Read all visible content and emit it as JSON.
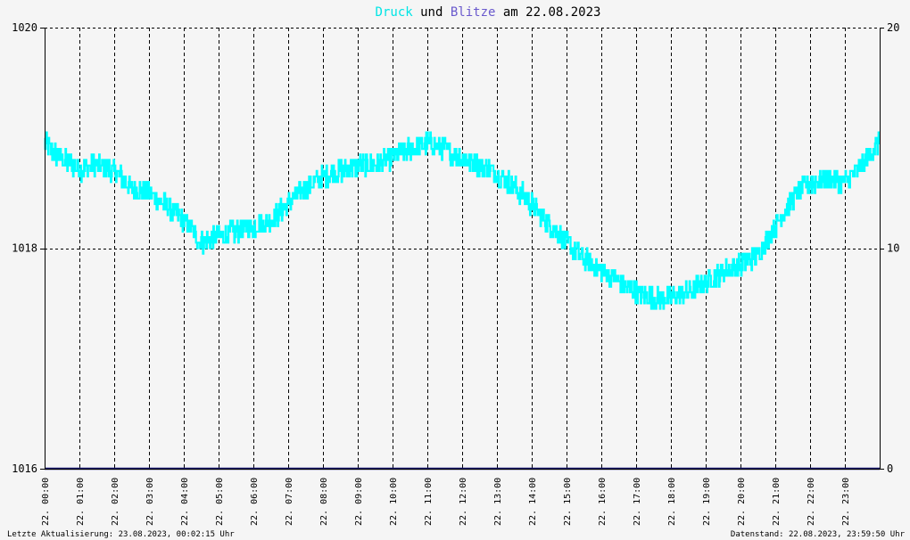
{
  "title": {
    "part1": "Druck",
    "part2": " und ",
    "part3": "Blitze",
    "part4": " am 22.08.2023"
  },
  "footer": {
    "left": "Letzte Aktualisierung: 23.08.2023, 00:02:15 Uhr",
    "right": "Datenstand: 22.08.2023, 23:59:50 Uhr"
  },
  "colors": {
    "background": "#f5f5f5",
    "druck": "#00ffff",
    "blitze": "#191970",
    "grid": "#000000",
    "title_druck": "#00e5e5",
    "title_blitze": "#6a5acd"
  },
  "chart_data": {
    "type": "line",
    "title": "Druck und Blitze am 22.08.2023",
    "x_unit": "hour",
    "xlim": [
      0,
      24
    ],
    "ylim_left": [
      1016,
      1020
    ],
    "ylim_right": [
      0,
      20
    ],
    "y_ticks_left": [
      "1016",
      "1018",
      "1020"
    ],
    "y_ticks_right": [
      "0",
      "10",
      "20"
    ],
    "y_ticks_left_values": [
      1016,
      1018,
      1020
    ],
    "y_ticks_right_values": [
      0,
      10,
      20
    ],
    "x_ticks": [
      {
        "hour": 0,
        "label": "22. 00:00"
      },
      {
        "hour": 1,
        "label": "22. 01:00"
      },
      {
        "hour": 2,
        "label": "22. 02:00"
      },
      {
        "hour": 3,
        "label": "22. 03:00"
      },
      {
        "hour": 4,
        "label": "22. 04:00"
      },
      {
        "hour": 5,
        "label": "22. 05:00"
      },
      {
        "hour": 6,
        "label": "22. 06:00"
      },
      {
        "hour": 7,
        "label": "22. 07:00"
      },
      {
        "hour": 8,
        "label": "22. 08:00"
      },
      {
        "hour": 9,
        "label": "22. 09:00"
      },
      {
        "hour": 10,
        "label": "22. 10:00"
      },
      {
        "hour": 11,
        "label": "22. 11:00"
      },
      {
        "hour": 12,
        "label": "22. 12:00"
      },
      {
        "hour": 13,
        "label": "22. 13:00"
      },
      {
        "hour": 14,
        "label": "22. 14:00"
      },
      {
        "hour": 15,
        "label": "22. 15:00"
      },
      {
        "hour": 16,
        "label": "22. 16:00"
      },
      {
        "hour": 17,
        "label": "22. 17:00"
      },
      {
        "hour": 18,
        "label": "22. 18:00"
      },
      {
        "hour": 19,
        "label": "22. 19:00"
      },
      {
        "hour": 20,
        "label": "22. 20:00"
      },
      {
        "hour": 21,
        "label": "22. 21:00"
      },
      {
        "hour": 22,
        "label": "22. 22:00"
      },
      {
        "hour": 23,
        "label": "22. 23:00"
      }
    ],
    "grid": true,
    "series": [
      {
        "name": "Druck",
        "axis": "left",
        "color": "#00ffff",
        "noise_amplitude": 0.1,
        "x": [
          0,
          0.5,
          1,
          1.5,
          2,
          2.5,
          3,
          3.5,
          4,
          4.5,
          5,
          5.5,
          6,
          6.5,
          7,
          7.5,
          8,
          8.5,
          9,
          9.5,
          10,
          10.5,
          11,
          11.5,
          12,
          12.5,
          13,
          13.5,
          14,
          14.5,
          15,
          15.5,
          16,
          16.5,
          17,
          17.5,
          18,
          18.5,
          19,
          19.5,
          20,
          20.5,
          21,
          21.5,
          22,
          22.5,
          23,
          23.5,
          24
        ],
        "values": [
          1018.95,
          1018.8,
          1018.72,
          1018.75,
          1018.7,
          1018.55,
          1018.5,
          1018.38,
          1018.25,
          1018.05,
          1018.1,
          1018.15,
          1018.2,
          1018.25,
          1018.4,
          1018.55,
          1018.65,
          1018.7,
          1018.75,
          1018.75,
          1018.82,
          1018.9,
          1018.95,
          1018.9,
          1018.82,
          1018.75,
          1018.68,
          1018.55,
          1018.4,
          1018.22,
          1018.05,
          1017.9,
          1017.8,
          1017.7,
          1017.6,
          1017.55,
          1017.55,
          1017.6,
          1017.7,
          1017.78,
          1017.85,
          1017.95,
          1018.2,
          1018.45,
          1018.6,
          1018.62,
          1018.6,
          1018.75,
          1018.98
        ]
      },
      {
        "name": "Blitze",
        "axis": "right",
        "color": "#191970",
        "x": [
          0,
          24
        ],
        "values": [
          0,
          0
        ]
      }
    ]
  }
}
